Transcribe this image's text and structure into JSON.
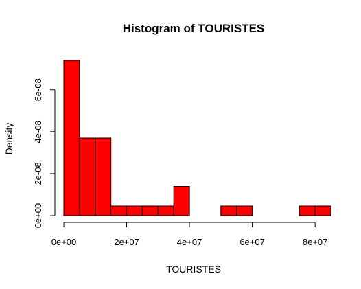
{
  "chart_data": {
    "type": "bar",
    "title": "Histogram of TOURISTES",
    "xlabel": "TOURISTES",
    "ylabel": "Density",
    "bar_color": "#ff0000",
    "bin_width": 5000000,
    "bin_edges": [
      0,
      5000000,
      10000000,
      15000000,
      20000000,
      25000000,
      30000000,
      35000000,
      40000000,
      45000000,
      50000000,
      55000000,
      60000000,
      65000000,
      70000000,
      75000000,
      80000000,
      85000000
    ],
    "values": [
      7.4e-08,
      3.7e-08,
      3.7e-08,
      4.6e-09,
      4.6e-09,
      4.6e-09,
      4.6e-09,
      1.39e-08,
      0,
      0,
      4.6e-09,
      4.6e-09,
      0,
      0,
      0,
      4.6e-09,
      4.6e-09
    ],
    "xlim": [
      0,
      85000000
    ],
    "ylim": [
      0,
      7.4e-08
    ],
    "x_ticks": [
      0,
      20000000,
      40000000,
      60000000,
      80000000
    ],
    "x_tick_labels": [
      "0e+00",
      "2e+07",
      "4e+07",
      "6e+07",
      "8e+07"
    ],
    "y_ticks": [
      0,
      2e-08,
      4e-08,
      6e-08
    ],
    "y_tick_labels": [
      "0e+00",
      "2e-08",
      "4e-08",
      "6e-08"
    ],
    "grid": false,
    "legend": "none"
  }
}
